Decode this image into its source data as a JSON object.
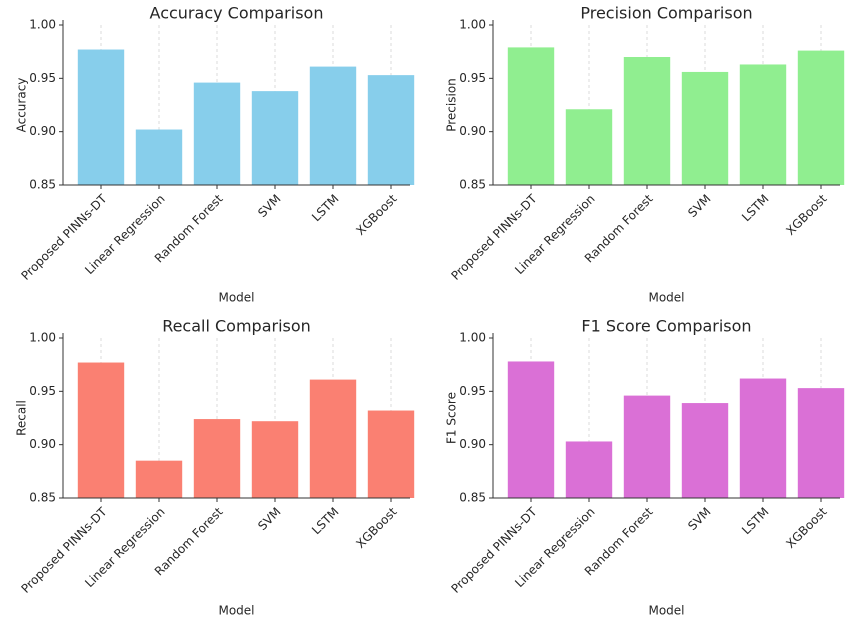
{
  "chart_data": [
    {
      "type": "bar",
      "title": "Accuracy Comparison",
      "x_label": "Model",
      "y_label": "Accuracy",
      "color": "#87ceeb",
      "categories": [
        "Proposed PINNs-DT",
        "Linear Regression",
        "Random Forest",
        "SVM",
        "LSTM",
        "XGBoost"
      ],
      "values": [
        0.977,
        0.902,
        0.946,
        0.938,
        0.961,
        0.953
      ],
      "ylim": [
        0.85,
        1.0
      ],
      "yticks": [
        0.85,
        {
          "value": 0.9,
          "label": "0.90"
        },
        0.95,
        {
          "value": 1.0,
          "label": "1.00"
        }
      ],
      "grid": true
    },
    {
      "type": "bar",
      "title": "Precision Comparison",
      "x_label": "Model",
      "y_label": "Precision",
      "color": "#90ee90",
      "categories": [
        "Proposed PINNs-DT",
        "Linear Regression",
        "Random Forest",
        "SVM",
        "LSTM",
        "XGBoost"
      ],
      "values": [
        0.979,
        0.921,
        0.97,
        0.956,
        0.963,
        0.976
      ],
      "ylim": [
        0.85,
        1.0
      ],
      "yticks": [
        0.85,
        {
          "value": 0.9,
          "label": "0.90"
        },
        0.95,
        {
          "value": 1.0,
          "label": "1.00"
        }
      ],
      "grid": true
    },
    {
      "type": "bar",
      "title": "Recall Comparison",
      "x_label": "Model",
      "y_label": "Recall",
      "color": "#fa8072",
      "categories": [
        "Proposed PINNs-DT",
        "Linear Regression",
        "Random Forest",
        "SVM",
        "LSTM",
        "XGBoost"
      ],
      "values": [
        0.977,
        0.885,
        0.924,
        0.922,
        0.961,
        0.932
      ],
      "ylim": [
        0.85,
        1.0
      ],
      "yticks": [
        0.85,
        {
          "value": 0.9,
          "label": "0.90"
        },
        0.95,
        {
          "value": 1.0,
          "label": "1.00"
        }
      ],
      "grid": true
    },
    {
      "type": "bar",
      "title": "F1 Score Comparison",
      "x_label": "Model",
      "y_label": "F1 Score",
      "color": "#da70d6",
      "categories": [
        "Proposed PINNs-DT",
        "Linear Regression",
        "Random Forest",
        "SVM",
        "LSTM",
        "XGBoost"
      ],
      "values": [
        0.978,
        0.903,
        0.946,
        0.939,
        0.962,
        0.953
      ],
      "ylim": [
        0.85,
        1.0
      ],
      "yticks": [
        0.85,
        {
          "value": 0.9,
          "label": "0.90"
        },
        0.95,
        {
          "value": 1.0,
          "label": "1.00"
        }
      ],
      "grid": true
    }
  ]
}
